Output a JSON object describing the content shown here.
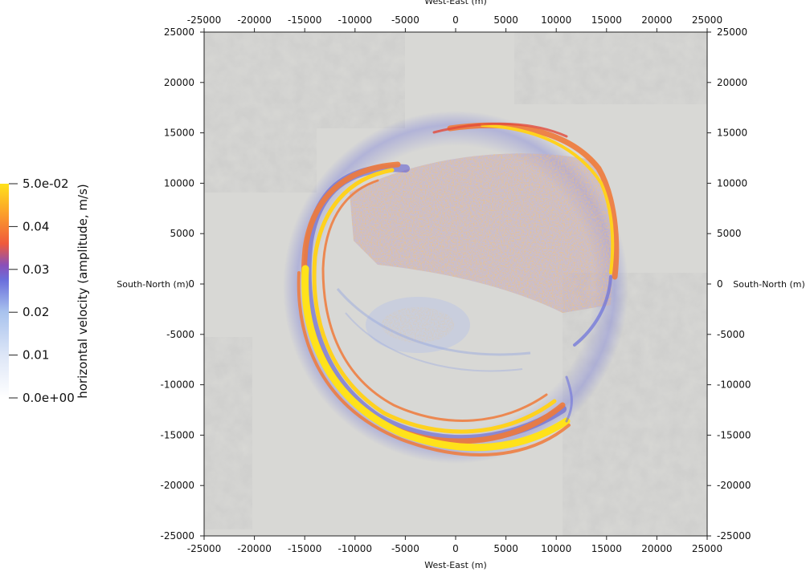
{
  "chart_data": {
    "type": "heatmap",
    "title": "",
    "xlabel": "West-East (m)",
    "ylabel": "South-North (m)",
    "xlim": [
      -25000,
      25000
    ],
    "ylim": [
      -25000,
      25000
    ],
    "xticks": [
      "-25000",
      "-20000",
      "-15000",
      "-10000",
      "-5000",
      "0",
      "5000",
      "10000",
      "15000",
      "20000",
      "25000"
    ],
    "yticks": [
      "25000",
      "20000",
      "15000",
      "10000",
      "5000",
      "0",
      "-5000",
      "-10000",
      "-15000",
      "-20000",
      "-25000"
    ],
    "grid": false,
    "colorbar": {
      "title": "horizontal velocity (amplitude, m/s)",
      "range": [
        0.0,
        0.05
      ],
      "labels": [
        "5.0e-02",
        "0.04",
        "0.03",
        "0.02",
        "0.01",
        "0.0e+00"
      ],
      "colors": [
        "#ffffff",
        "#a9c3ee",
        "#4e4fd0",
        "#ef5a3c",
        "#ffe21a"
      ]
    },
    "wavefront": {
      "description_visible": false,
      "ring_center_m": [
        -1500,
        -500
      ],
      "ring_radius_m": 15500,
      "strong_sector": "south-west",
      "peak_amplitude": 0.05
    }
  }
}
